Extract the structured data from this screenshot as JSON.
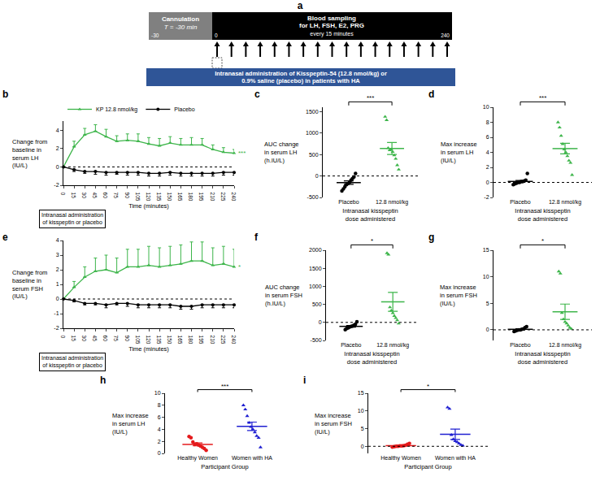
{
  "diagram": {
    "panel": "a",
    "cannulation": "Cannulation",
    "cannulation_time": "T = -30 min",
    "sampling_title": "Blood sampling",
    "sampling_detail": "for LH, FSH, E2, PRG",
    "sampling_interval": "every 15 minutes",
    "timeline_labels": [
      -30,
      0,
      240
    ],
    "sample_times": [
      0,
      15,
      30,
      45,
      60,
      75,
      90,
      105,
      120,
      135,
      150,
      165,
      180,
      195,
      210,
      225,
      240
    ],
    "administration": "Intranasal administration of Kisspeptin-54 (12.8 nmol/kg) or 0.9% saline (placebo) in patients with HA"
  },
  "chart_data": [
    {
      "panel": "b",
      "type": "line",
      "y_label": "Change from baseline in serum LH (IU/L)",
      "x_label": "Time (minutes)",
      "note": "Intranasal administration of kisspeptin or placebo",
      "significance": "***",
      "legend": "top",
      "baseline": 0,
      "x": [
        0,
        15,
        30,
        45,
        60,
        75,
        90,
        105,
        120,
        135,
        150,
        165,
        180,
        195,
        210,
        225,
        240
      ],
      "xlim": [
        0,
        240
      ],
      "xticks": [
        0,
        15,
        30,
        45,
        60,
        75,
        90,
        105,
        120,
        135,
        150,
        165,
        180,
        195,
        210,
        225,
        240
      ],
      "ylim": [
        -2,
        5
      ],
      "yticks": [
        -2,
        0,
        2,
        4
      ],
      "series": [
        {
          "name": "KP 12.8 nmol/kg",
          "color": "#3db54a",
          "marker": "triangle-up",
          "values": [
            0,
            2.2,
            3.5,
            3.9,
            3.3,
            2.8,
            2.9,
            2.8,
            2.5,
            2.3,
            2.6,
            2.4,
            2.4,
            2.4,
            1.9,
            1.6,
            1.5
          ],
          "error_up": [
            0,
            0.6,
            0.7,
            0.7,
            0.8,
            0.6,
            0.7,
            0.8,
            0.7,
            0.8,
            0.7,
            0.7,
            0.8,
            0.7,
            0.5,
            0.5,
            0.4
          ]
        },
        {
          "name": "Placebo",
          "color": "#000000",
          "marker": "circle",
          "values": [
            0,
            -0.3,
            -0.5,
            -0.5,
            -0.6,
            -0.6,
            -0.6,
            -0.6,
            -0.7,
            -0.7,
            -0.6,
            -0.7,
            -0.7,
            -0.7,
            -0.7,
            -0.6,
            -0.6
          ],
          "error_down": [
            0,
            0.2,
            0.2,
            0.3,
            0.3,
            0.2,
            0.3,
            0.3,
            0.3,
            0.3,
            0.3,
            0.3,
            0.3,
            0.3,
            0.3,
            0.3,
            0.3
          ]
        }
      ]
    },
    {
      "panel": "c",
      "type": "strip",
      "y_label": "AUC change in serum LH (h.IU/L)",
      "x_label": "Intranasal kisspeptin dose administered",
      "significance": "***",
      "baseline": 0,
      "ylim": [
        -500,
        1600
      ],
      "yticks": [
        -500,
        0,
        500,
        1000,
        1500
      ],
      "groups": [
        {
          "category": "Placebo",
          "color": "#000000",
          "marker": "circle",
          "points": [
            -350,
            -300,
            -250,
            -200,
            -180,
            -150,
            -100,
            -60,
            -20,
            60
          ],
          "mean": -155,
          "sem": 40
        },
        {
          "category": "12.8 nmol/kg",
          "color": "#3db54a",
          "marker": "triangle-up",
          "points": [
            1380,
            1300,
            650,
            600,
            620,
            560,
            480,
            400,
            250,
            150
          ],
          "mean": 640,
          "sem": 140
        }
      ]
    },
    {
      "panel": "d",
      "type": "strip",
      "y_label": "Max increase in serum LH (IU/L)",
      "x_label": "Intranasal kisspeptin dose administered",
      "significance": "***",
      "baseline": 0,
      "ylim": [
        -2,
        10
      ],
      "yticks": [
        -2,
        0,
        2,
        4,
        6,
        8,
        10
      ],
      "groups": [
        {
          "category": "Placebo",
          "color": "#000000",
          "marker": "circle",
          "points": [
            -0.3,
            -0.2,
            -0.1,
            0,
            0,
            0.1,
            0.1,
            0.2,
            0.3,
            1.2
          ],
          "mean": 0.13,
          "sem": 0.13
        },
        {
          "category": "12.8 nmol/kg",
          "color": "#3db54a",
          "marker": "triangle-up",
          "points": [
            8.0,
            7.3,
            6.2,
            5.1,
            4.4,
            4.0,
            3.5,
            2.9,
            2.6,
            1.0
          ],
          "mean": 4.5,
          "sem": 0.7
        }
      ]
    },
    {
      "panel": "e",
      "type": "line",
      "y_label": "Change from baseline in serum FSH (IU/L)",
      "x_label": "Time (minutes)",
      "note": "Intranasal administration of kisspeptin or placebo",
      "significance": "*",
      "baseline": 0,
      "x": [
        0,
        15,
        30,
        45,
        60,
        75,
        90,
        105,
        120,
        135,
        150,
        165,
        180,
        195,
        210,
        225,
        240
      ],
      "xlim": [
        0,
        240
      ],
      "xticks": [
        0,
        15,
        30,
        45,
        60,
        75,
        90,
        105,
        120,
        135,
        150,
        165,
        180,
        195,
        210,
        225,
        240
      ],
      "ylim": [
        -2,
        4
      ],
      "yticks": [
        -2,
        -1,
        0,
        1,
        2,
        3,
        4
      ],
      "series": [
        {
          "color": "#3db54a",
          "marker": "triangle-up",
          "values": [
            0,
            0.8,
            1.5,
            1.9,
            2.0,
            1.8,
            2.2,
            2.2,
            2.3,
            2.2,
            2.3,
            2.4,
            2.6,
            2.6,
            2.3,
            2.4,
            2.2
          ],
          "error_up": [
            0,
            0.4,
            0.7,
            0.9,
            1.0,
            1.0,
            1.2,
            1.2,
            1.3,
            1.3,
            1.3,
            1.3,
            1.3,
            1.3,
            1.2,
            1.2,
            1.2
          ]
        },
        {
          "color": "#000000",
          "marker": "circle",
          "values": [
            0,
            -0.1,
            -0.3,
            -0.3,
            -0.4,
            -0.3,
            -0.3,
            -0.4,
            -0.4,
            -0.4,
            -0.4,
            -0.5,
            -0.5,
            -0.4,
            -0.4,
            -0.4,
            -0.4
          ],
          "error_down": [
            0,
            0.1,
            0.1,
            0.1,
            0.2,
            0.1,
            0.2,
            0.2,
            0.2,
            0.2,
            0.2,
            0.2,
            0.2,
            0.2,
            0.2,
            0.2,
            0.2
          ]
        }
      ]
    },
    {
      "panel": "f",
      "type": "strip",
      "y_label": "AUC change in serum FSH (h.IU/L)",
      "x_label": "Intranasal kisspeptin dose administered",
      "significance": "*",
      "baseline": 0,
      "ylim": [
        -500,
        2000
      ],
      "yticks": [
        -500,
        0,
        500,
        1000,
        1500,
        2000
      ],
      "groups": [
        {
          "category": "Placebo",
          "color": "#000000",
          "marker": "circle",
          "points": [
            -200,
            -170,
            -150,
            -130,
            -110,
            -100,
            -80,
            -50,
            20
          ],
          "mean": -110,
          "sem": 22
        },
        {
          "category": "12.8 nmol/kg",
          "color": "#3db54a",
          "marker": "triangle-up",
          "points": [
            1920,
            1880,
            420,
            330,
            260,
            180,
            120,
            60,
            -30
          ],
          "mean": 570,
          "sem": 260
        }
      ]
    },
    {
      "panel": "g",
      "type": "strip",
      "y_label": "Max increase in serum FSH (IU/L)",
      "x_label": "Intranasal kisspeptin dose administered",
      "significance": "*",
      "baseline": 0,
      "ylim": [
        -2,
        15
      ],
      "yticks": [
        0,
        5,
        10,
        15
      ],
      "groups": [
        {
          "category": "Placebo",
          "color": "#000000",
          "marker": "circle",
          "points": [
            -0.3,
            -0.2,
            -0.1,
            0,
            0,
            0.1,
            0.2,
            0.4,
            0.6
          ],
          "mean": 0.1,
          "sem": 0.1
        },
        {
          "category": "12.8 nmol/kg",
          "color": "#3db54a",
          "marker": "triangle-up",
          "points": [
            11.0,
            10.6,
            3.2,
            2.0,
            1.5,
            1.2,
            0.8,
            0.4,
            0.2
          ],
          "mean": 3.4,
          "sem": 1.45
        }
      ]
    },
    {
      "panel": "h",
      "type": "strip",
      "y_label": "Max increase in serum LH (IU/L)",
      "x_label": "Participant Group",
      "significance": "***",
      "ylim": [
        0,
        10
      ],
      "yticks": [
        0,
        2,
        4,
        6,
        8,
        10
      ],
      "groups": [
        {
          "category": "Healthy Women",
          "color": "#e41a1c",
          "marker": "circle",
          "points": [
            2.8,
            2.6,
            1.9,
            1.5,
            1.6,
            1.4,
            1.2,
            1.0,
            0.8,
            0.5
          ],
          "mean": 1.5,
          "sem": 0.25
        },
        {
          "category": "Women with HA",
          "color": "#1f1fd1",
          "marker": "triangle-up",
          "points": [
            8.0,
            7.3,
            6.2,
            5.1,
            4.4,
            4.0,
            3.5,
            2.9,
            2.6,
            1.0
          ],
          "mean": 4.5,
          "sem": 0.7
        }
      ]
    },
    {
      "panel": "i",
      "type": "strip",
      "y_label": "Max increase in serum FSH (IU/L)",
      "x_label": "Participant Group",
      "significance": "*",
      "baseline": 0,
      "ylim": [
        -2,
        15
      ],
      "yticks": [
        0,
        5,
        10,
        15
      ],
      "groups": [
        {
          "category": "Healthy Women",
          "color": "#e41a1c",
          "marker": "circle",
          "points": [
            -0.2,
            -0.1,
            0,
            0,
            0.1,
            0.1,
            0.2,
            0.3,
            0.6,
            0.8
          ],
          "mean": 0.18,
          "sem": 0.1
        },
        {
          "category": "Women with HA",
          "color": "#1f1fd1",
          "marker": "triangle-up",
          "points": [
            11.0,
            10.6,
            3.2,
            2.0,
            1.5,
            1.2,
            0.8,
            0.4,
            0.2
          ],
          "mean": 3.4,
          "sem": 1.45
        }
      ]
    }
  ]
}
